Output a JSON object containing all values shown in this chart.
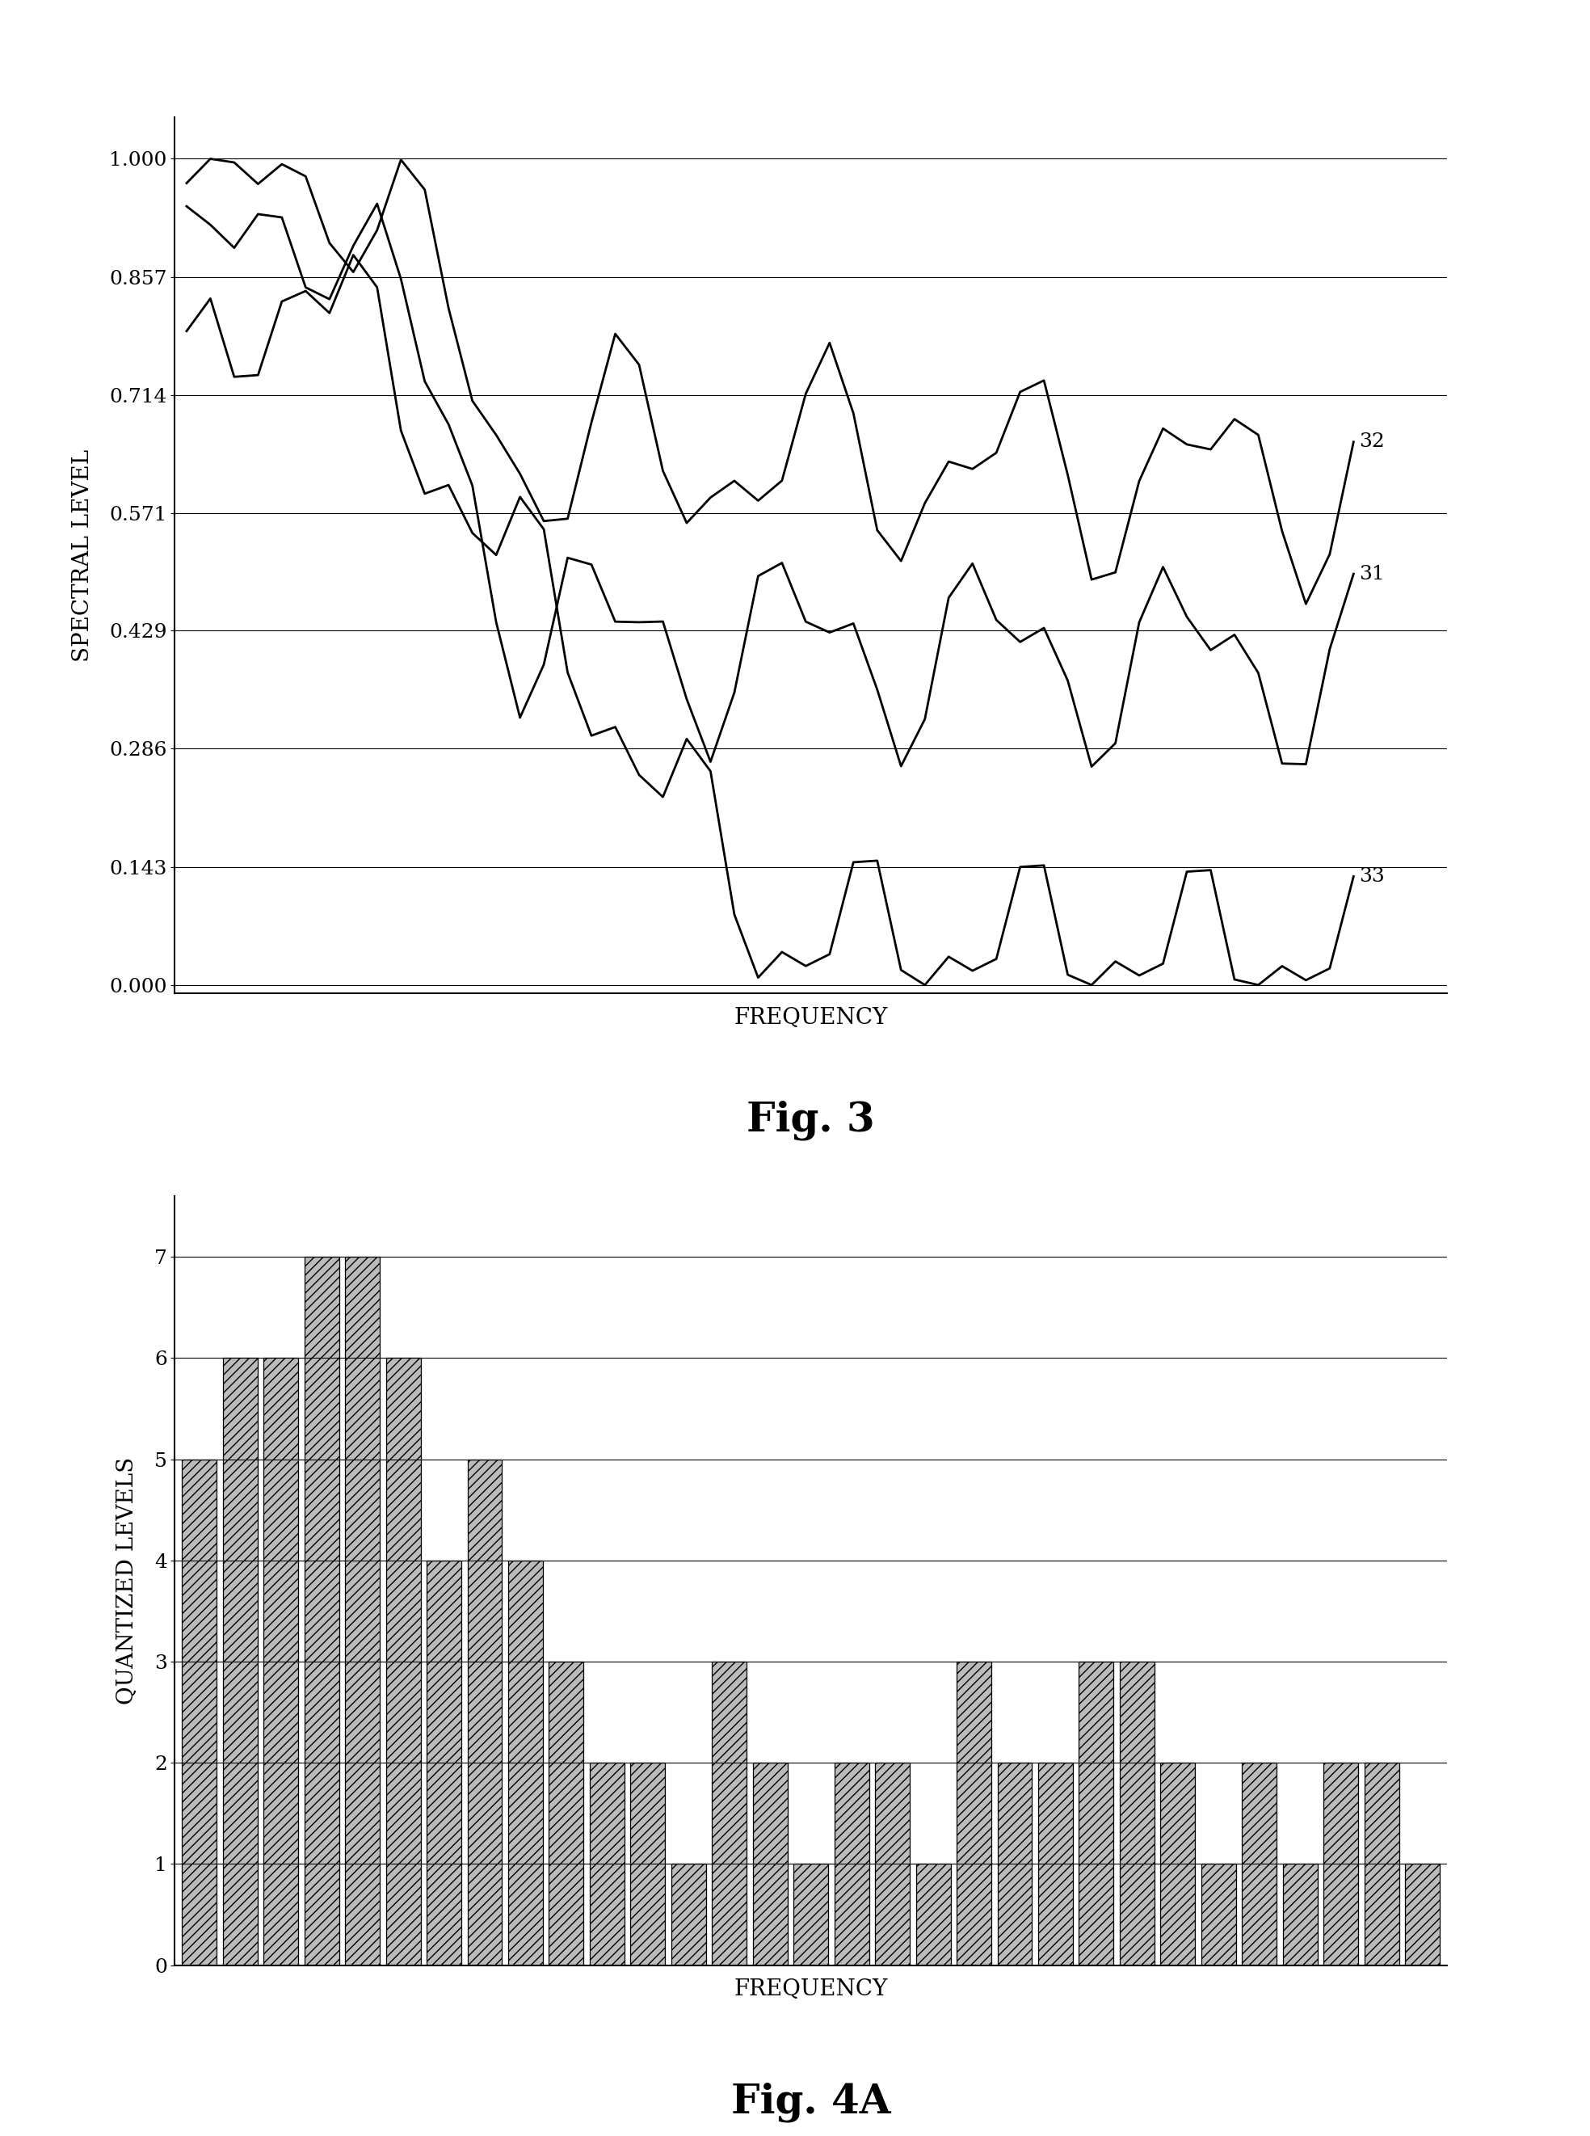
{
  "fig3_title": "Fig. 3",
  "fig3_xlabel": "FREQUENCY",
  "fig3_ylabel": "SPECTRAL LEVEL",
  "fig3_ytick_vals": [
    0.0,
    0.143,
    0.286,
    0.429,
    0.571,
    0.714,
    0.857,
    1.0
  ],
  "fig3_ytick_labels": [
    "0.000",
    "0.143",
    "0.286",
    "0.429",
    "0.571",
    "0.714",
    "0.857",
    "1.000"
  ],
  "fig3_line32_label": "32",
  "fig3_line31_label": "31",
  "fig3_line33_label": "33",
  "fig4a_title": "Fig. 4A",
  "fig4a_xlabel": "FREQUENCY",
  "fig4a_ylabel": "QUANTIZED LEVELS",
  "fig4a_ytick_vals": [
    0,
    1,
    2,
    3,
    4,
    5,
    6,
    7
  ],
  "fig4a_bar_values": [
    5,
    6,
    6,
    7,
    7,
    6,
    4,
    5,
    4,
    3,
    2,
    2,
    1,
    3,
    2,
    1,
    2,
    2,
    1,
    3,
    2,
    2,
    3,
    3,
    2,
    1,
    2,
    1,
    2,
    2,
    1
  ],
  "background_color": "#ffffff",
  "line_color": "#000000",
  "bar_hatch": "///",
  "bar_facecolor": "#bbbbbb",
  "title_fontsize": 36,
  "label_fontsize": 20,
  "tick_fontsize": 18,
  "annotation_fontsize": 18
}
